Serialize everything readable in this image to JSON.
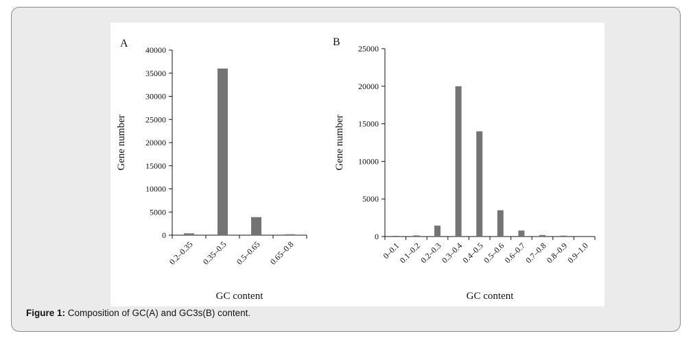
{
  "colors": {
    "bar": "#747474",
    "axis": "#111111",
    "panel_bg": "#ebebeb"
  },
  "chart_data": [
    {
      "type": "bar",
      "panel_label": "A",
      "title": "",
      "xlabel": "GC content",
      "ylabel": "Gene number",
      "categories": [
        "0.2–0.35",
        "0.35–0.5",
        "0.5–0.65",
        "0.65–0.8"
      ],
      "values": [
        400,
        36000,
        3900,
        200
      ],
      "ylim": [
        0,
        40000
      ],
      "yticks": [
        0,
        5000,
        10000,
        15000,
        20000,
        25000,
        30000,
        35000,
        40000
      ],
      "grid": false
    },
    {
      "type": "bar",
      "panel_label": "B",
      "title": "",
      "xlabel": "GC content",
      "ylabel": "Gene number",
      "categories": [
        "0–0.1",
        "0.1–0.2",
        "0.2–0.3",
        "0.3–0.4",
        "0.4–0.5",
        "0.5–0.6",
        "0.6–0.7",
        "0.7–0.8",
        "0.8–0.9",
        "0.9–1.0"
      ],
      "values": [
        100,
        150,
        1450,
        20000,
        14000,
        3500,
        800,
        200,
        120,
        80
      ],
      "ylim": [
        0,
        25000
      ],
      "yticks": [
        0,
        5000,
        10000,
        15000,
        20000,
        25000
      ],
      "grid": false
    }
  ],
  "caption": {
    "label": "Figure 1:",
    "text": " Composition of GC(A) and GC3s(B) content."
  }
}
